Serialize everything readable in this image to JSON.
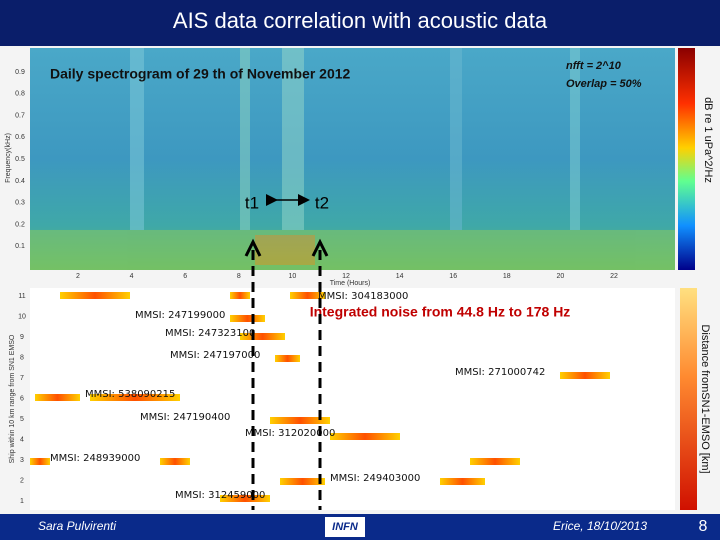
{
  "header": {
    "title": "AIS data correlation with acoustic data"
  },
  "spectrogram": {
    "title": "Daily spectrogram of 29 th of November 2012",
    "nfft": "nfft = 2^10",
    "overlap": "Overlap = 50%",
    "colorbar_label": "dB re 1 uPa^2/Hz",
    "y_label": "Frequency(kHz)",
    "x_label": "Time (Hours)",
    "yticks": [
      "0.9",
      "0.8",
      "0.7",
      "0.6",
      "0.5",
      "0.4",
      "0.3",
      "0.2",
      "0.1"
    ],
    "xticks": [
      "2",
      "4",
      "6",
      "8",
      "10",
      "12",
      "14",
      "16",
      "18",
      "20",
      "22"
    ]
  },
  "markers": {
    "t1": "t1",
    "t2": "t2"
  },
  "ais": {
    "annotation": "Integrated noise from 44.8 Hz to 178 Hz",
    "distance_label": "Distance fromSN1-EMSO [km]",
    "y_label": "Ship within 10 km range from SN1 EMSO",
    "yticks": [
      "11",
      "10",
      "9",
      "8",
      "7",
      "6",
      "5",
      "4",
      "3",
      "2",
      "1"
    ],
    "ships": [
      "MMSI: 304183000",
      "MMSI: 247199000",
      "MMSI: 247323100",
      "MMSI: 247197000",
      "MMSI: 271000742",
      "MMSI: 538090215",
      "MMSI: 247190400",
      "MMSI: 312020000",
      "MMSI: 248939000",
      "MMSI: 249403000",
      "MMSI: 312459000"
    ]
  },
  "footer": {
    "author": "Sara Pulvirenti",
    "logo": "INFN",
    "place_date": "Erice, 18/10/2013",
    "page": "8"
  }
}
